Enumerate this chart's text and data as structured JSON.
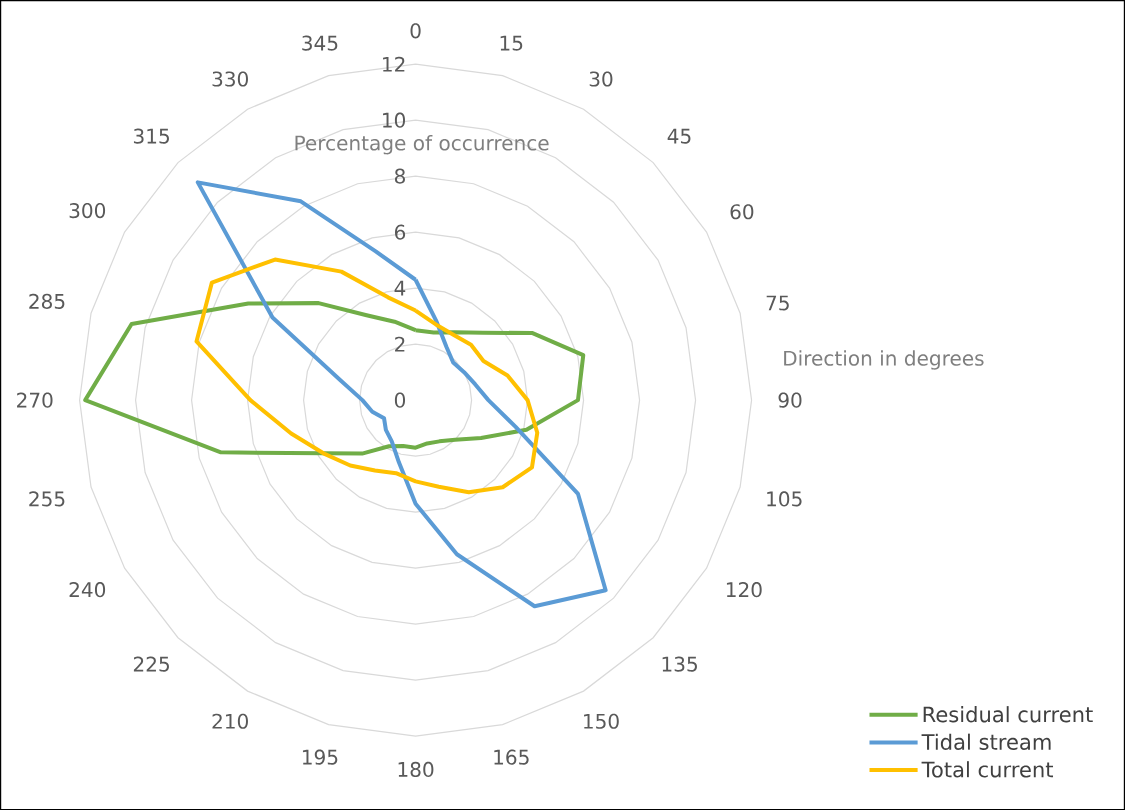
{
  "chart_data": {
    "type": "radar",
    "xlabel": "Direction in degrees",
    "ylabel": "Percentage of occurrence",
    "categories": [
      "0",
      "15",
      "30",
      "45",
      "60",
      "75",
      "90",
      "105",
      "120",
      "135",
      "150",
      "165",
      "180",
      "195",
      "210",
      "225",
      "240",
      "255",
      "270",
      "285",
      "300",
      "315",
      "330",
      "345"
    ],
    "series": [
      {
        "name": "Residual current",
        "color": "#70ad47",
        "values": [
          2.5,
          2.5,
          2.8,
          3.4,
          4.8,
          6.2,
          5.8,
          4.1,
          2.7,
          2.0,
          1.7,
          1.6,
          1.7,
          1.7,
          1.9,
          2.7,
          3.8,
          7.2,
          11.8,
          10.5,
          6.9,
          4.9,
          3.5,
          2.9
        ]
      },
      {
        "name": "Tidal stream",
        "color": "#5b9bd5",
        "values": [
          4.3,
          2.9,
          2.2,
          1.9,
          2.0,
          2.2,
          2.6,
          3.7,
          6.7,
          9.6,
          8.5,
          5.7,
          3.7,
          2.3,
          1.7,
          1.5,
          1.3,
          1.6,
          1.9,
          2.8,
          5.9,
          11.0,
          8.2,
          5.5
        ]
      },
      {
        "name": "Total current",
        "color": "#ffc000",
        "values": [
          3.2,
          2.8,
          2.7,
          2.8,
          2.8,
          3.4,
          4.0,
          4.5,
          4.8,
          4.4,
          3.8,
          3.2,
          2.9,
          2.7,
          2.9,
          3.3,
          3.8,
          4.6,
          5.9,
          8.1,
          8.4,
          7.1,
          5.3,
          3.8
        ]
      }
    ],
    "ylim": [
      0,
      12
    ],
    "yticks": [
      0,
      2,
      4,
      6,
      8,
      10,
      12
    ],
    "grid": true,
    "legend": "bottom right"
  }
}
